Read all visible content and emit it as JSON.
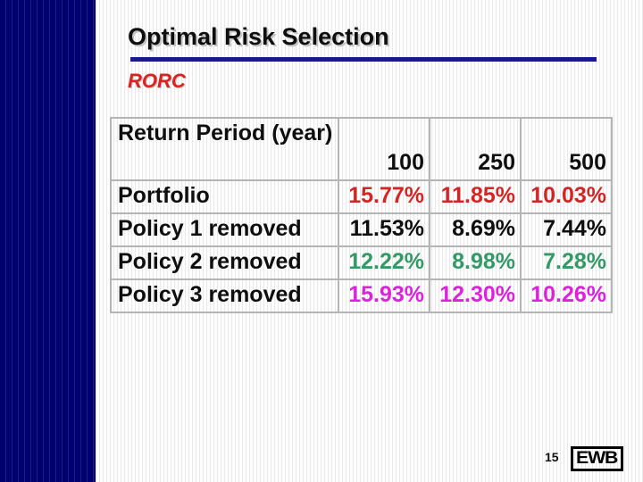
{
  "slide": {
    "title": "Optimal Risk Selection",
    "subtitle": "RORC"
  },
  "table": {
    "header": {
      "label": "Return Period (year)",
      "columns": [
        "100",
        "250",
        "500"
      ]
    },
    "rows": [
      {
        "label": "Portfolio",
        "values": [
          "15.77%",
          "11.85%",
          "10.03%"
        ],
        "value_color": "#d22626"
      },
      {
        "label": "Policy 1 removed",
        "values": [
          "11.53%",
          "8.69%",
          "7.44%"
        ],
        "value_color": "#0e0e0e"
      },
      {
        "label": "Policy 2 removed",
        "values": [
          "12.22%",
          "8.98%",
          "7.28%"
        ],
        "value_color": "#339966"
      },
      {
        "label": "Policy 3 removed",
        "values": [
          "15.93%",
          "12.30%",
          "10.26%"
        ],
        "value_color": "#dd22dd"
      }
    ]
  },
  "footer": {
    "page_number": "15",
    "logo_text": "EWB"
  },
  "colors": {
    "sidebar": "#000070",
    "title_rule": "#1a1a8c",
    "subtitle_red": "#dd2222",
    "table_border": "#b5b5b5",
    "portfolio_red": "#d22626",
    "policy2_green": "#339966",
    "policy3_magenta": "#dd22dd"
  }
}
